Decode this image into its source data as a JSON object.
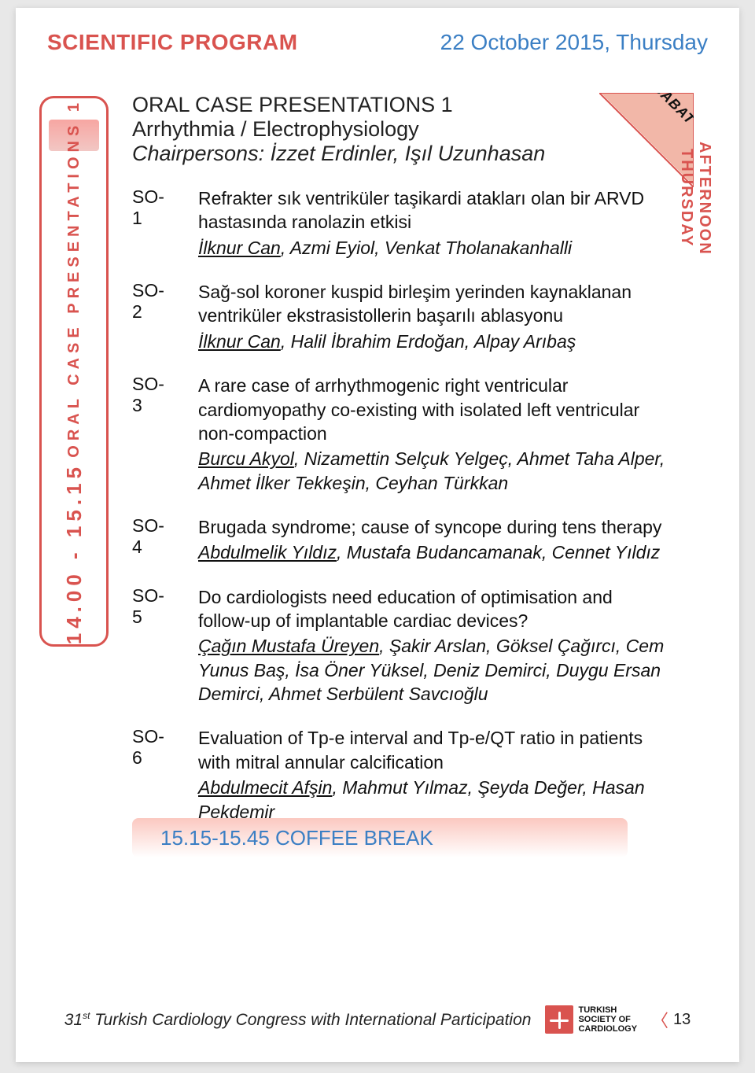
{
  "header": {
    "left": "SCIENTIFIC PROGRAM",
    "right": "22 October 2015, Thursday"
  },
  "colors": {
    "accent_red": "#d9534f",
    "accent_blue": "#3b7fc4",
    "peach": "#f2b7a8",
    "light_peach": "#fbc8c0",
    "page_bg": "#ffffff"
  },
  "left_strip": {
    "time": "14.00 - 15.15",
    "label": "ORAL CASE PRESENTATIONS 1"
  },
  "right_strip": {
    "line1": "THURSDAY",
    "line2": "AFTERNOON"
  },
  "corner_tag": "ASHGABAT",
  "session": {
    "title": "ORAL CASE PRESENTATIONS 1",
    "subtitle": "Arrhythmia / Electrophysiology",
    "chairpersons": "Chairpersons: İzzet Erdinler, Işıl Uzunhasan"
  },
  "items": [
    {
      "code": "SO-1",
      "title": "Refrakter sık ventriküler taşikardi atakları olan bir ARVD hastasında ranolazin etkisi",
      "authors_underlined": "İlknur Can",
      "authors_rest": ", Azmi Eyiol, Venkat Tholanakanhalli"
    },
    {
      "code": "SO-2",
      "title": "Sağ-sol koroner kuspid birleşim yerinden kaynaklanan ventriküler ekstrasistollerin başarılı ablasyonu",
      "authors_underlined": "İlknur Can",
      "authors_rest": ", Halil İbrahim Erdoğan, Alpay Arıbaş"
    },
    {
      "code": "SO-3",
      "title": "A rare case of arrhythmogenic right ventricular cardiomyopathy co-existing with isolated left ventricular non-compaction",
      "authors_underlined": "Burcu Akyol",
      "authors_rest": ", Nizamettin Selçuk Yelgeç, Ahmet Taha Alper, Ahmet İlker Tekkeşin, Ceyhan Türkkan"
    },
    {
      "code": "SO-4",
      "title": "Brugada syndrome; cause of syncope during tens therapy",
      "authors_underlined": "Abdulmelik Yıldız",
      "authors_rest": ", Mustafa Budancamanak, Cennet Yıldız"
    },
    {
      "code": "SO-5",
      "title": "Do cardiologists need education of optimisation and follow-up of implantable cardiac devices?",
      "authors_underlined": "Çağın Mustafa Üreyen",
      "authors_rest": ", Şakir Arslan, Göksel Çağırcı, Cem Yunus Baş, İsa Öner Yüksel, Deniz Demirci, Duygu Ersan Demirci, Ahmet Serbülent Savcıoğlu"
    },
    {
      "code": "SO-6",
      "title": "Evaluation of Tp-e interval and Tp-e/QT ratio in patients with mitral annular calcification",
      "authors_underlined": "Abdulmecit Afşin",
      "authors_rest": ", Mahmut Yılmaz, Şeyda Değer, Hasan Pekdemir"
    }
  ],
  "coffee": "15.15-15.45  COFFEE BREAK",
  "footer": {
    "congress": "31st Turkish Cardiology Congress with International Participation",
    "logo_l1": "TURKISH",
    "logo_l2": "SOCIETY OF",
    "logo_l3": "CARDIOLOGY",
    "page_number": "13"
  }
}
